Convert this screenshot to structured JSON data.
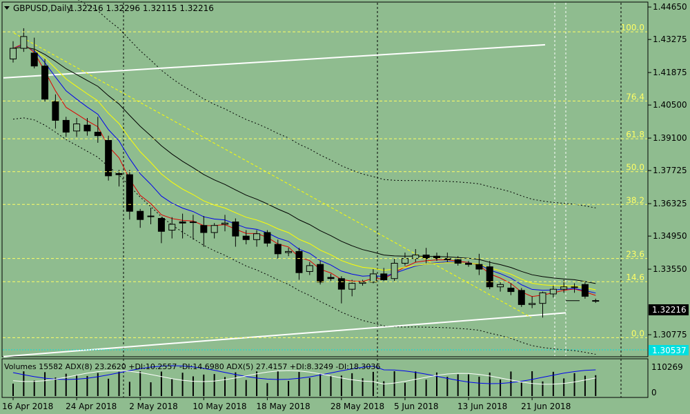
{
  "header": {
    "symbol": "GBPUSD,Daily",
    "ohlc": "1.32216 1.32296 1.32115 1.32216"
  },
  "indicator_label": "Volumes 15582  ADX(8) 23.2620 +DI:10.2557 -DI:14.6980  ADX(5) 27.4157 +DI:8.3249 -DI:18.3036",
  "volume_axis": [
    "110269",
    "0"
  ],
  "price_box": {
    "current": "1.32216",
    "low_level": "1.30537"
  },
  "colors": {
    "background": "#8fbc8f",
    "fib_lines": "#ffff66",
    "trend_lines": "#ffffff",
    "ma_red": "#e00000",
    "ma_blue": "#0000ee",
    "ma_yellow": "#ffff00",
    "ma_black": "#000000"
  },
  "chart_data": {
    "type": "candlestick",
    "title": "GBPUSD,Daily",
    "ylim": [
      1.299,
      1.448
    ],
    "price_ticks": [
      "1.44650",
      "1.43275",
      "1.41875",
      "1.40500",
      "1.39100",
      "1.37725",
      "1.36325",
      "1.34950",
      "1.33550",
      "1.32216",
      "1.30775"
    ],
    "date_ticks": [
      "16 Apr 2018",
      "24 Apr 2018",
      "2 May 2018",
      "10 May 2018",
      "18 May 2018",
      "28 May 2018",
      "5 Jun 2018",
      "13 Jun 2018",
      "21 Jun 2018"
    ],
    "fibonacci": [
      {
        "label": "100.0",
        "price": 1.436
      },
      {
        "label": "76.4",
        "price": 1.4067
      },
      {
        "label": "61.8",
        "price": 1.3907
      },
      {
        "label": "50.0",
        "price": 1.3768
      },
      {
        "label": "38.2",
        "price": 1.3629
      },
      {
        "label": "23.6",
        "price": 1.34
      },
      {
        "label": "14.6",
        "price": 1.3302
      },
      {
        "label": "0.0",
        "price": 1.3065
      }
    ],
    "candles": [
      {
        "o": 1.4245,
        "h": 1.432,
        "l": 1.423,
        "c": 1.429
      },
      {
        "o": 1.429,
        "h": 1.4375,
        "l": 1.4275,
        "c": 1.434
      },
      {
        "o": 1.427,
        "h": 1.4335,
        "l": 1.4205,
        "c": 1.4215
      },
      {
        "o": 1.4215,
        "h": 1.4245,
        "l": 1.4065,
        "c": 1.4075
      },
      {
        "o": 1.4065,
        "h": 1.4095,
        "l": 1.395,
        "c": 1.3985
      },
      {
        "o": 1.3985,
        "h": 1.4,
        "l": 1.3915,
        "c": 1.3935
      },
      {
        "o": 1.394,
        "h": 1.3995,
        "l": 1.3915,
        "c": 1.397
      },
      {
        "o": 1.3965,
        "h": 1.3995,
        "l": 1.392,
        "c": 1.394
      },
      {
        "o": 1.3935,
        "h": 1.4,
        "l": 1.389,
        "c": 1.392
      },
      {
        "o": 1.39,
        "h": 1.392,
        "l": 1.373,
        "c": 1.375
      },
      {
        "o": 1.376,
        "h": 1.3775,
        "l": 1.3705,
        "c": 1.3755
      },
      {
        "o": 1.3755,
        "h": 1.3775,
        "l": 1.3565,
        "c": 1.36
      },
      {
        "o": 1.36,
        "h": 1.361,
        "l": 1.353,
        "c": 1.3565
      },
      {
        "o": 1.358,
        "h": 1.3615,
        "l": 1.3545,
        "c": 1.358
      },
      {
        "o": 1.357,
        "h": 1.3575,
        "l": 1.3465,
        "c": 1.3515
      },
      {
        "o": 1.352,
        "h": 1.3575,
        "l": 1.3485,
        "c": 1.3545
      },
      {
        "o": 1.3555,
        "h": 1.359,
        "l": 1.3485,
        "c": 1.355
      },
      {
        "o": 1.3555,
        "h": 1.3585,
        "l": 1.348,
        "c": 1.3555
      },
      {
        "o": 1.354,
        "h": 1.358,
        "l": 1.345,
        "c": 1.351
      },
      {
        "o": 1.351,
        "h": 1.355,
        "l": 1.3485,
        "c": 1.354
      },
      {
        "o": 1.3545,
        "h": 1.3585,
        "l": 1.3515,
        "c": 1.355
      },
      {
        "o": 1.3555,
        "h": 1.357,
        "l": 1.345,
        "c": 1.3495
      },
      {
        "o": 1.3495,
        "h": 1.352,
        "l": 1.346,
        "c": 1.348
      },
      {
        "o": 1.348,
        "h": 1.352,
        "l": 1.345,
        "c": 1.3505
      },
      {
        "o": 1.351,
        "h": 1.352,
        "l": 1.345,
        "c": 1.3465
      },
      {
        "o": 1.346,
        "h": 1.348,
        "l": 1.34,
        "c": 1.342
      },
      {
        "o": 1.3425,
        "h": 1.3445,
        "l": 1.341,
        "c": 1.343
      },
      {
        "o": 1.343,
        "h": 1.3445,
        "l": 1.331,
        "c": 1.334
      },
      {
        "o": 1.3345,
        "h": 1.3385,
        "l": 1.333,
        "c": 1.337
      },
      {
        "o": 1.3375,
        "h": 1.339,
        "l": 1.329,
        "c": 1.33
      },
      {
        "o": 1.332,
        "h": 1.3335,
        "l": 1.3305,
        "c": 1.3315
      },
      {
        "o": 1.3315,
        "h": 1.3325,
        "l": 1.321,
        "c": 1.327
      },
      {
        "o": 1.327,
        "h": 1.331,
        "l": 1.324,
        "c": 1.3295
      },
      {
        "o": 1.3295,
        "h": 1.331,
        "l": 1.3285,
        "c": 1.33
      },
      {
        "o": 1.33,
        "h": 1.3355,
        "l": 1.3295,
        "c": 1.3335
      },
      {
        "o": 1.3335,
        "h": 1.336,
        "l": 1.3305,
        "c": 1.331
      },
      {
        "o": 1.3315,
        "h": 1.34,
        "l": 1.3305,
        "c": 1.338
      },
      {
        "o": 1.338,
        "h": 1.3425,
        "l": 1.337,
        "c": 1.34
      },
      {
        "o": 1.34,
        "h": 1.344,
        "l": 1.3385,
        "c": 1.3415
      },
      {
        "o": 1.3415,
        "h": 1.3445,
        "l": 1.338,
        "c": 1.34
      },
      {
        "o": 1.341,
        "h": 1.3425,
        "l": 1.339,
        "c": 1.34
      },
      {
        "o": 1.34,
        "h": 1.3425,
        "l": 1.3385,
        "c": 1.3395
      },
      {
        "o": 1.3395,
        "h": 1.341,
        "l": 1.337,
        "c": 1.338
      },
      {
        "o": 1.338,
        "h": 1.339,
        "l": 1.3365,
        "c": 1.3375
      },
      {
        "o": 1.3375,
        "h": 1.342,
        "l": 1.333,
        "c": 1.3355
      },
      {
        "o": 1.3365,
        "h": 1.339,
        "l": 1.327,
        "c": 1.328
      },
      {
        "o": 1.328,
        "h": 1.33,
        "l": 1.326,
        "c": 1.329
      },
      {
        "o": 1.3275,
        "h": 1.3295,
        "l": 1.3245,
        "c": 1.326
      },
      {
        "o": 1.3265,
        "h": 1.3275,
        "l": 1.3195,
        "c": 1.3205
      },
      {
        "o": 1.3205,
        "h": 1.324,
        "l": 1.319,
        "c": 1.321
      },
      {
        "o": 1.321,
        "h": 1.326,
        "l": 1.315,
        "c": 1.3255
      },
      {
        "o": 1.325,
        "h": 1.3285,
        "l": 1.3235,
        "c": 1.327
      },
      {
        "o": 1.327,
        "h": 1.331,
        "l": 1.3255,
        "c": 1.328
      },
      {
        "o": 1.328,
        "h": 1.3295,
        "l": 1.3255,
        "c": 1.328
      },
      {
        "o": 1.329,
        "h": 1.33,
        "l": 1.323,
        "c": 1.324
      },
      {
        "o": 1.3222,
        "h": 1.323,
        "l": 1.3212,
        "c": 1.3222
      }
    ]
  }
}
